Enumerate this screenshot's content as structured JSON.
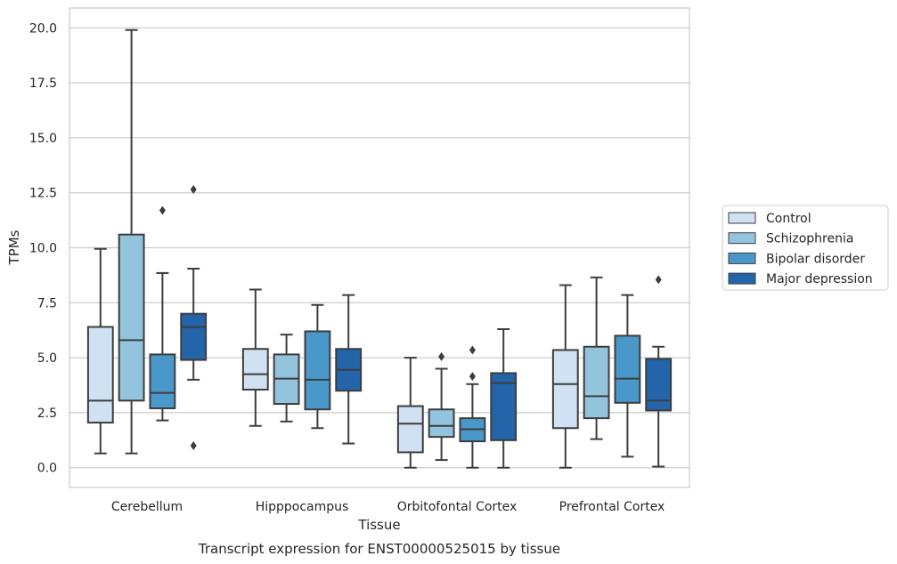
{
  "chart_data": {
    "type": "box",
    "caption": "Transcript expression for ENST00000525015 by tissue",
    "xlabel": "Tissue",
    "ylabel": "TPMs",
    "ylim": [
      -0.9,
      20.9
    ],
    "yticks": [
      "0.0",
      "2.5",
      "5.0",
      "7.5",
      "10.0",
      "12.5",
      "15.0",
      "17.5",
      "20.0"
    ],
    "grid": "horizontal",
    "legend_position": "right",
    "categories": [
      "Cerebellum",
      "Hipppocampus",
      "Orbitofontal Cortex",
      "Prefrontal Cortex"
    ],
    "series": [
      {
        "name": "Control",
        "color": "#cfe1f2",
        "boxes": [
          {
            "whislo": 0.65,
            "q1": 2.05,
            "med": 3.05,
            "q3": 6.4,
            "whishi": 9.95,
            "fliers": []
          },
          {
            "whislo": 1.9,
            "q1": 3.55,
            "med": 4.25,
            "q3": 5.4,
            "whishi": 8.1,
            "fliers": []
          },
          {
            "whislo": 0.0,
            "q1": 0.7,
            "med": 2.0,
            "q3": 2.8,
            "whishi": 5.0,
            "fliers": []
          },
          {
            "whislo": 0.0,
            "q1": 1.8,
            "med": 3.8,
            "q3": 5.35,
            "whishi": 8.3,
            "fliers": []
          }
        ]
      },
      {
        "name": "Schizophrenia",
        "color": "#93c4de",
        "boxes": [
          {
            "whislo": 0.65,
            "q1": 3.05,
            "med": 5.8,
            "q3": 10.6,
            "whishi": 19.9,
            "fliers": []
          },
          {
            "whislo": 2.1,
            "q1": 2.9,
            "med": 4.05,
            "q3": 5.15,
            "whishi": 6.05,
            "fliers": []
          },
          {
            "whislo": 0.35,
            "q1": 1.4,
            "med": 1.9,
            "q3": 2.65,
            "whishi": 4.5,
            "fliers": [
              5.05
            ]
          },
          {
            "whislo": 1.3,
            "q1": 2.25,
            "med": 3.25,
            "q3": 5.5,
            "whishi": 8.65,
            "fliers": []
          }
        ]
      },
      {
        "name": "Bipolar disorder",
        "color": "#4a98c9",
        "boxes": [
          {
            "whislo": 2.15,
            "q1": 2.7,
            "med": 3.4,
            "q3": 5.15,
            "whishi": 8.85,
            "fliers": [
              11.7
            ]
          },
          {
            "whislo": 1.8,
            "q1": 2.65,
            "med": 4.0,
            "q3": 6.2,
            "whishi": 7.4,
            "fliers": []
          },
          {
            "whislo": 0.0,
            "q1": 1.2,
            "med": 1.75,
            "q3": 2.25,
            "whishi": 3.8,
            "fliers": [
              4.15,
              5.35
            ]
          },
          {
            "whislo": 0.5,
            "q1": 2.95,
            "med": 4.05,
            "q3": 6.0,
            "whishi": 7.85,
            "fliers": []
          }
        ]
      },
      {
        "name": "Major depression",
        "color": "#2365a8",
        "boxes": [
          {
            "whislo": 4.0,
            "q1": 4.9,
            "med": 6.4,
            "q3": 7.0,
            "whishi": 9.05,
            "fliers": [
              12.65,
              1.0
            ]
          },
          {
            "whislo": 1.1,
            "q1": 3.5,
            "med": 4.45,
            "q3": 5.4,
            "whishi": 7.85,
            "fliers": []
          },
          {
            "whislo": 0.0,
            "q1": 1.25,
            "med": 3.85,
            "q3": 4.3,
            "whishi": 6.3,
            "fliers": []
          },
          {
            "whislo": 0.05,
            "q1": 2.6,
            "med": 3.05,
            "q3": 4.95,
            "whishi": 5.5,
            "fliers": [
              8.55
            ]
          }
        ]
      }
    ]
  }
}
